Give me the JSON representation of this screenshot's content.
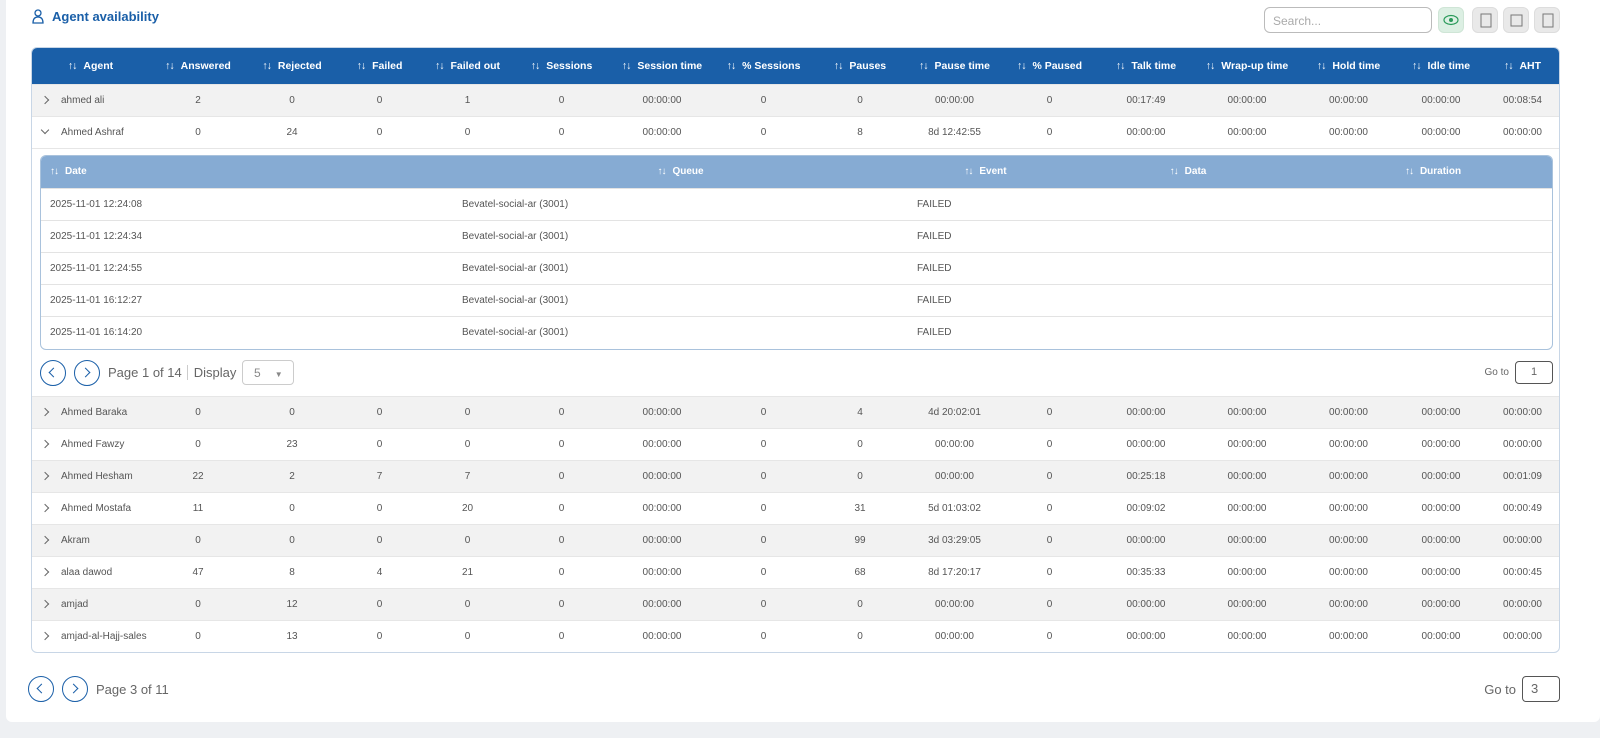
{
  "header": {
    "title": "Agent availability",
    "search_placeholder": "Search..."
  },
  "table": {
    "columns": [
      "Agent",
      "Answered",
      "Rejected",
      "Failed",
      "Failed out",
      "Sessions",
      "Session time",
      "% Sessions",
      "Pauses",
      "Pause time",
      "% Paused",
      "Talk time",
      "Wrap-up time",
      "Hold time",
      "Idle time",
      "AHT"
    ],
    "rows": [
      [
        "ahmed ali",
        "2",
        "0",
        "0",
        "1",
        "0",
        "00:00:00",
        "0",
        "0",
        "00:00:00",
        "0",
        "00:17:49",
        "00:00:00",
        "00:00:00",
        "00:00:00",
        "00:08:54"
      ],
      [
        "Ahmed Ashraf",
        "0",
        "24",
        "0",
        "0",
        "0",
        "00:00:00",
        "0",
        "8",
        "8d 12:42:55",
        "0",
        "00:00:00",
        "00:00:00",
        "00:00:00",
        "00:00:00",
        "00:00:00"
      ],
      [
        "Ahmed Baraka",
        "0",
        "0",
        "0",
        "0",
        "0",
        "00:00:00",
        "0",
        "4",
        "4d 20:02:01",
        "0",
        "00:00:00",
        "00:00:00",
        "00:00:00",
        "00:00:00",
        "00:00:00"
      ],
      [
        "Ahmed Fawzy",
        "0",
        "23",
        "0",
        "0",
        "0",
        "00:00:00",
        "0",
        "0",
        "00:00:00",
        "0",
        "00:00:00",
        "00:00:00",
        "00:00:00",
        "00:00:00",
        "00:00:00"
      ],
      [
        "Ahmed Hesham",
        "22",
        "2",
        "7",
        "7",
        "0",
        "00:00:00",
        "0",
        "0",
        "00:00:00",
        "0",
        "00:25:18",
        "00:00:00",
        "00:00:00",
        "00:00:00",
        "00:01:09"
      ],
      [
        "Ahmed Mostafa",
        "11",
        "0",
        "0",
        "20",
        "0",
        "00:00:00",
        "0",
        "31",
        "5d 01:03:02",
        "0",
        "00:09:02",
        "00:00:00",
        "00:00:00",
        "00:00:00",
        "00:00:49"
      ],
      [
        "Akram",
        "0",
        "0",
        "0",
        "0",
        "0",
        "00:00:00",
        "0",
        "99",
        "3d 03:29:05",
        "0",
        "00:00:00",
        "00:00:00",
        "00:00:00",
        "00:00:00",
        "00:00:00"
      ],
      [
        "alaa dawod",
        "47",
        "8",
        "4",
        "21",
        "0",
        "00:00:00",
        "0",
        "68",
        "8d 17:20:17",
        "0",
        "00:35:33",
        "00:00:00",
        "00:00:00",
        "00:00:00",
        "00:00:45"
      ],
      [
        "amjad",
        "0",
        "12",
        "0",
        "0",
        "0",
        "00:00:00",
        "0",
        "0",
        "00:00:00",
        "0",
        "00:00:00",
        "00:00:00",
        "00:00:00",
        "00:00:00",
        "00:00:00"
      ],
      [
        "amjad-al-Hajj-sales",
        "0",
        "13",
        "0",
        "0",
        "0",
        "00:00:00",
        "0",
        "0",
        "00:00:00",
        "0",
        "00:00:00",
        "00:00:00",
        "00:00:00",
        "00:00:00",
        "00:00:00"
      ]
    ]
  },
  "detail": {
    "columns": [
      "Date",
      "Queue",
      "Event",
      "Data",
      "Duration"
    ],
    "rows": [
      [
        "2025-11-01 12:24:08",
        "Bevatel-social-ar (3001)",
        "FAILED"
      ],
      [
        "2025-11-01 12:24:34",
        "Bevatel-social-ar (3001)",
        "FAILED"
      ],
      [
        "2025-11-01 12:24:55",
        "Bevatel-social-ar (3001)",
        "FAILED"
      ],
      [
        "2025-11-01 16:12:27",
        "Bevatel-social-ar (3001)",
        "FAILED"
      ],
      [
        "2025-11-01 16:14:20",
        "Bevatel-social-ar (3001)",
        "FAILED"
      ]
    ],
    "pagination": {
      "page_text": "Page 1 of 14",
      "display_label": "Display",
      "display_value": "5",
      "goto_label": "Go to",
      "goto_value": "1"
    }
  },
  "pagination": {
    "page_text": "Page 3 of 11",
    "goto_label": "Go to",
    "goto_value": "3"
  }
}
